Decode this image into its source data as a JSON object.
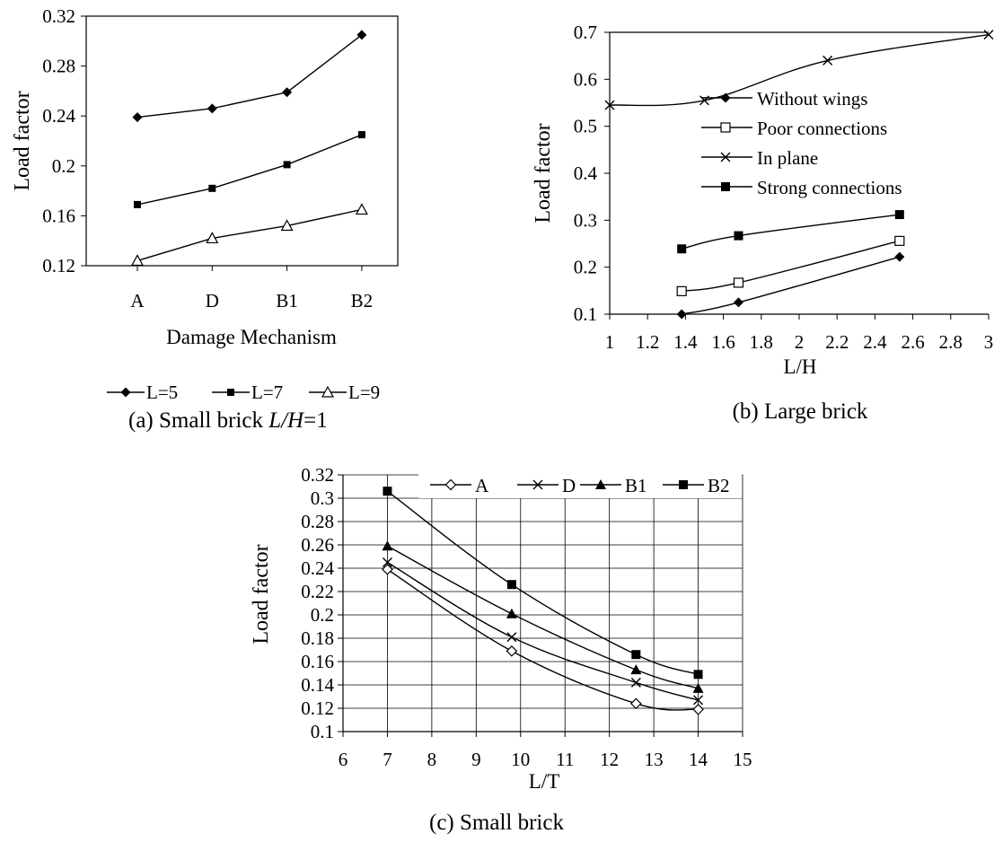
{
  "chart_data": [
    {
      "type": "line",
      "xlabel": "Damage Mechanism",
      "ylabel": "Load factor",
      "categories": [
        "A",
        "D",
        "B1",
        "B2"
      ],
      "ylim": [
        0.12,
        0.32
      ],
      "yticks": [
        "0.12",
        "0.16",
        "0.2",
        "0.24",
        "0.28",
        "0.32"
      ],
      "grid": false,
      "legend_position": "bottom",
      "caption_prefix": "(a)  Small brick ",
      "caption_italic": "L/H",
      "caption_suffix": "=1",
      "series": [
        {
          "name": "L=5",
          "marker": "diamond-filled",
          "values": [
            0.239,
            0.246,
            0.259,
            0.305
          ]
        },
        {
          "name": "L=7",
          "marker": "square-filled-small",
          "values": [
            0.169,
            0.182,
            0.201,
            0.225
          ]
        },
        {
          "name": "L=9",
          "marker": "triangle-open",
          "values": [
            0.124,
            0.142,
            0.152,
            0.165
          ]
        }
      ]
    },
    {
      "type": "line",
      "xlabel": "L/H",
      "ylabel": "Load factor",
      "xlim": [
        1,
        3
      ],
      "ylim": [
        0.1,
        0.7
      ],
      "xticks": [
        "1",
        "1.2",
        "1.4",
        "1.6",
        "1.8",
        "2",
        "2.2",
        "2.4",
        "2.6",
        "2.8",
        "3"
      ],
      "yticks": [
        "0.1",
        "0.2",
        "0.3",
        "0.4",
        "0.5",
        "0.6",
        "0.7"
      ],
      "grid": false,
      "legend_position": "inside-center",
      "caption": "(b) Large brick",
      "series": [
        {
          "name": "Without wings",
          "marker": "diamond-filled",
          "x": [
            1.38,
            1.68,
            2.53
          ],
          "y": [
            0.1,
            0.125,
            0.222
          ]
        },
        {
          "name": "Poor connections",
          "marker": "square-open",
          "x": [
            1.38,
            1.68,
            2.53
          ],
          "y": [
            0.149,
            0.167,
            0.256
          ]
        },
        {
          "name": "In plane",
          "marker": "x",
          "x": [
            1.0,
            1.5,
            2.15,
            3.0
          ],
          "y": [
            0.545,
            0.555,
            0.64,
            0.695
          ]
        },
        {
          "name": "Strong connections",
          "marker": "square-filled",
          "x": [
            1.38,
            1.68,
            2.53
          ],
          "y": [
            0.239,
            0.267,
            0.312
          ]
        }
      ]
    },
    {
      "type": "line",
      "xlabel": "L/T",
      "ylabel": "Load factor",
      "xlim": [
        6,
        15
      ],
      "ylim": [
        0.1,
        0.32
      ],
      "xticks": [
        "6",
        "7",
        "8",
        "9",
        "10",
        "11",
        "12",
        "13",
        "14",
        "15"
      ],
      "yticks": [
        "0.1",
        "0.12",
        "0.14",
        "0.16",
        "0.18",
        "0.2",
        "0.22",
        "0.24",
        "0.26",
        "0.28",
        "0.3",
        "0.32"
      ],
      "grid": true,
      "legend_position": "top-right",
      "caption": "(c) Small brick",
      "series": [
        {
          "name": "A",
          "marker": "diamond-open",
          "x": [
            7,
            9.8,
            12.6,
            14
          ],
          "y": [
            0.239,
            0.169,
            0.124,
            0.119
          ]
        },
        {
          "name": "D",
          "marker": "x",
          "x": [
            7,
            9.8,
            12.6,
            14
          ],
          "y": [
            0.245,
            0.181,
            0.142,
            0.127
          ]
        },
        {
          "name": "B1",
          "marker": "triangle-filled",
          "x": [
            7,
            9.8,
            12.6,
            14
          ],
          "y": [
            0.259,
            0.201,
            0.153,
            0.137
          ]
        },
        {
          "name": "B2",
          "marker": "square-filled",
          "x": [
            7,
            9.8,
            12.6,
            14
          ],
          "y": [
            0.306,
            0.226,
            0.166,
            0.149
          ]
        }
      ]
    }
  ]
}
